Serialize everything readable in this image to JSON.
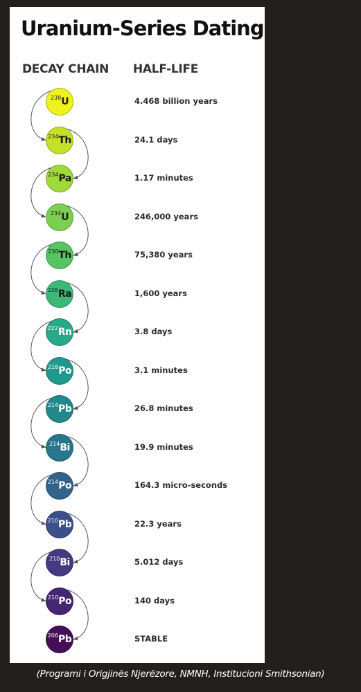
{
  "title": "Uranium-Series Dating",
  "columns": {
    "left": "DECAY CHAIN",
    "right": "HALF-LIFE"
  },
  "chain": [
    {
      "mass": "238",
      "symbol": "U",
      "half_life": "4.468 billion years",
      "color": "#eef21f",
      "text_color": "#1a1a1a"
    },
    {
      "mass": "234",
      "symbol": "Th",
      "half_life": "24.1 days",
      "color": "#c5e127",
      "text_color": "#1a1a1a"
    },
    {
      "mass": "234",
      "symbol": "Pa",
      "half_life": "1.17 minutes",
      "color": "#9fd93a",
      "text_color": "#1a1a1a"
    },
    {
      "mass": "234",
      "symbol": "U",
      "half_life": "246,000 years",
      "color": "#7ccf4f",
      "text_color": "#1a1a1a"
    },
    {
      "mass": "230",
      "symbol": "Th",
      "half_life": "75,380 years",
      "color": "#56c463",
      "text_color": "#1a1a1a"
    },
    {
      "mass": "226",
      "symbol": "Ra",
      "half_life": "1,600 years",
      "color": "#3db878",
      "text_color": "#1a1a1a"
    },
    {
      "mass": "222",
      "symbol": "Rn",
      "half_life": "3.8 days",
      "color": "#27a98a",
      "text_color": "#ffffff"
    },
    {
      "mass": "218",
      "symbol": "Po",
      "half_life": "3.1 minutes",
      "color": "#1f998c",
      "text_color": "#ffffff"
    },
    {
      "mass": "214",
      "symbol": "Pb",
      "half_life": "26.8 minutes",
      "color": "#21888d",
      "text_color": "#ffffff"
    },
    {
      "mass": "214",
      "symbol": "Bi",
      "half_life": "19.9 minutes",
      "color": "#29758c",
      "text_color": "#ffffff"
    },
    {
      "mass": "214",
      "symbol": "Po",
      "half_life": "164.3 micro-seconds",
      "color": "#32638b",
      "text_color": "#ffffff"
    },
    {
      "mass": "210",
      "symbol": "Pb",
      "half_life": "22.3 years",
      "color": "#3b4f89",
      "text_color": "#ffffff"
    },
    {
      "mass": "210",
      "symbol": "Bi",
      "half_life": "5.012 days",
      "color": "#433a82",
      "text_color": "#ffffff"
    },
    {
      "mass": "210",
      "symbol": "Po",
      "half_life": "140 days",
      "color": "#452673",
      "text_color": "#ffffff"
    },
    {
      "mass": "206",
      "symbol": "Pb",
      "half_life": "STABLE",
      "color": "#440f57",
      "text_color": "#ffffff"
    }
  ],
  "caption": "(Programi i Origjinës Njerëzore, NMNH, Institucioni Smithsonian)"
}
